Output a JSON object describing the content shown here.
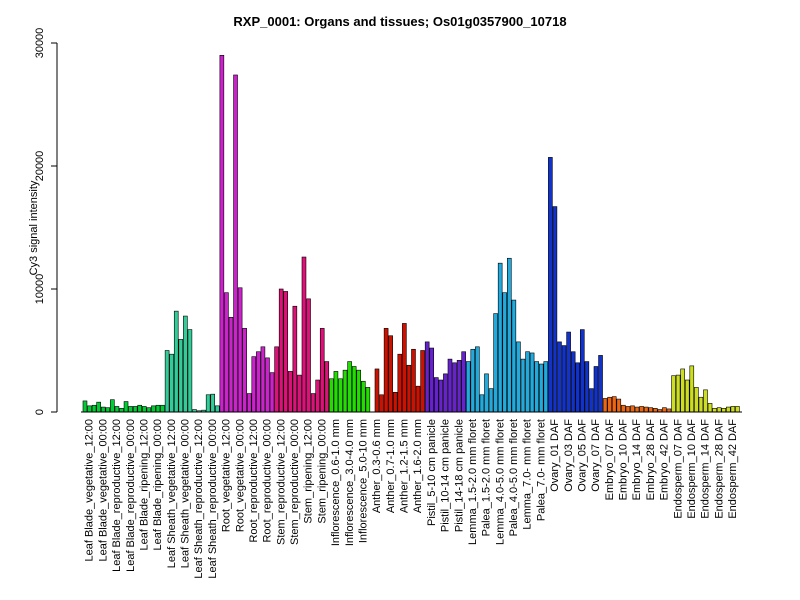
{
  "chart_data": {
    "type": "bar",
    "title": "RXP_0001: Organs and tissues; Os01g0357900_10718",
    "ylabel": "Cy3 signal intensity",
    "xlabel": "",
    "ylim": [
      0,
      30000
    ],
    "yticks": [
      0,
      10000,
      20000,
      30000
    ],
    "grid": false,
    "legend": "none",
    "series_by_group": true,
    "groups": [
      {
        "label": "Leaf Blade_vegetative_12:00",
        "color": "#00cc33",
        "values": [
          900,
          500,
          550
        ]
      },
      {
        "label": "Leaf Blade_vegetative_00:00",
        "color": "#00cc33",
        "values": [
          800,
          400,
          350
        ]
      },
      {
        "label": "Leaf Blade_reproductive_12:00",
        "color": "#00cc33",
        "values": [
          1000,
          450,
          300
        ]
      },
      {
        "label": "Leaf Blade_reproductive_00:00",
        "color": "#00cc33",
        "values": [
          850,
          450,
          450
        ]
      },
      {
        "label": "Leaf Blade_ripening_12:00",
        "color": "#00cc33",
        "values": [
          550,
          450,
          350
        ]
      },
      {
        "label": "Leaf Blade_ripening_00:00",
        "color": "#00cc33",
        "values": [
          500,
          550,
          550
        ]
      },
      {
        "label": "Leaf Sheath_vegetative_12:00",
        "color": "#33cc99",
        "values": [
          5000,
          4700,
          8200
        ]
      },
      {
        "label": "Leaf Sheath_vegetative_00:00",
        "color": "#33cc99",
        "values": [
          5900,
          7800,
          6700
        ]
      },
      {
        "label": "Leaf Sheath_reproductive_12:00",
        "color": "#33cc99",
        "values": [
          200,
          100,
          150
        ]
      },
      {
        "label": "Leaf Sheath_reproductive_00:00",
        "color": "#33cc99",
        "values": [
          1400,
          1450,
          500
        ]
      },
      {
        "label": "Root_vegetative_12:00",
        "color": "#cc22cc",
        "values": [
          29000,
          9700,
          7700
        ]
      },
      {
        "label": "Root_vegetative_00:00",
        "color": "#cc22cc",
        "values": [
          27400,
          10100,
          6800
        ]
      },
      {
        "label": "Root_reproductive_12:00",
        "color": "#cc22cc",
        "values": [
          1500,
          4500,
          4900
        ]
      },
      {
        "label": "Root_reproductive_00:00",
        "color": "#cc22cc",
        "values": [
          5300,
          4400,
          3200
        ]
      },
      {
        "label": "Stem_reproductive_12:00",
        "color": "#dd1177",
        "values": [
          5300,
          10000,
          9800
        ]
      },
      {
        "label": "Stem_reproductive_00:00",
        "color": "#dd1177",
        "values": [
          3300,
          8600,
          3000
        ]
      },
      {
        "label": "Stem_ripening_12:00",
        "color": "#dd1177",
        "values": [
          12600,
          9200,
          1500
        ]
      },
      {
        "label": "Stem_ripening_00:00",
        "color": "#dd1177",
        "values": [
          2600,
          6800,
          4100
        ]
      },
      {
        "label": "Inflorescence_0.6-1.0 mm",
        "color": "#22dd00",
        "values": [
          2700,
          3300,
          2700
        ]
      },
      {
        "label": "Inflorescence_3.0-4.0 mm",
        "color": "#22dd00",
        "values": [
          3400,
          4100,
          3700
        ]
      },
      {
        "label": "Inflorescence_5.0-10 mm",
        "color": "#22dd00",
        "values": [
          3400,
          2500,
          2000
        ]
      },
      {
        "label": "Anther_0.3-0.6 mm",
        "color": "#cc1100",
        "values": [
          0,
          3500,
          1400
        ]
      },
      {
        "label": "Anther_0.7-1.0 mm",
        "color": "#cc1100",
        "values": [
          6800,
          6200,
          1600
        ]
      },
      {
        "label": "Anther_1.2-1.5 mm",
        "color": "#cc1100",
        "values": [
          4700,
          7200,
          3800
        ]
      },
      {
        "label": "Anther_1.6-2.0 mm",
        "color": "#cc1100",
        "values": [
          5100,
          2100,
          5000
        ]
      },
      {
        "label": "Pistil_5-10 cm panicle",
        "color": "#6622cc",
        "values": [
          5700,
          5200,
          2800
        ]
      },
      {
        "label": "Pistil_10-14 cm panicle",
        "color": "#6622cc",
        "values": [
          2600,
          3100,
          4300
        ]
      },
      {
        "label": "Pistil_14-18 cm panicle",
        "color": "#6622cc",
        "values": [
          4000,
          4200,
          4900
        ]
      },
      {
        "label": "Lemma_1.5-2.0 mm floret",
        "color": "#22aadd",
        "values": [
          4100,
          5100,
          5300
        ]
      },
      {
        "label": "Palea_1.5-2.0 mm floret",
        "color": "#22aadd",
        "values": [
          1400,
          3100,
          1900
        ]
      },
      {
        "label": "Lemma_4.0-5.0 mm floret",
        "color": "#22aadd",
        "values": [
          8000,
          12100,
          9700
        ]
      },
      {
        "label": "Palea_4.0-5.0 mm floret",
        "color": "#22aadd",
        "values": [
          12500,
          9100,
          5700
        ]
      },
      {
        "label": "Lemma_7.0- mm floret",
        "color": "#22aadd",
        "values": [
          4300,
          4900,
          4800
        ]
      },
      {
        "label": "Palea_7.0- mm floret",
        "color": "#22aadd",
        "values": [
          4100,
          3900,
          4100
        ]
      },
      {
        "label": "Ovary_01 DAF",
        "color": "#1133cc",
        "values": [
          20700,
          16700,
          5700
        ]
      },
      {
        "label": "Ovary_03 DAF",
        "color": "#1133cc",
        "values": [
          5400,
          6500,
          4900
        ]
      },
      {
        "label": "Ovary_05 DAF",
        "color": "#1133cc",
        "values": [
          4000,
          6700,
          4100
        ]
      },
      {
        "label": "Ovary_07 DAF",
        "color": "#1133cc",
        "values": [
          1900,
          3700,
          4600
        ]
      },
      {
        "label": "Embryo_07 DAF",
        "color": "#ee6611",
        "values": [
          1100,
          1200,
          1250
        ]
      },
      {
        "label": "Embryo_10 DAF",
        "color": "#ee6611",
        "values": [
          1050,
          550,
          450
        ]
      },
      {
        "label": "Embryo_14 DAF",
        "color": "#ee6611",
        "values": [
          500,
          400,
          450
        ]
      },
      {
        "label": "Embryo_28 DAF",
        "color": "#ee6611",
        "values": [
          400,
          350,
          300
        ]
      },
      {
        "label": "Embryo_42 DAF",
        "color": "#ee6611",
        "values": [
          200,
          350,
          250
        ]
      },
      {
        "label": "Endosperm_07 DAF",
        "color": "#ccdd22",
        "values": [
          2950,
          3000,
          3500
        ]
      },
      {
        "label": "Endosperm_10 DAF",
        "color": "#ccdd22",
        "values": [
          2600,
          3750,
          2000
        ]
      },
      {
        "label": "Endosperm_14 DAF",
        "color": "#ccdd22",
        "values": [
          1200,
          1800,
          700
        ]
      },
      {
        "label": "Endosperm_28 DAF",
        "color": "#ccdd22",
        "values": [
          300,
          350,
          300
        ]
      },
      {
        "label": "Endosperm_42 DAF",
        "color": "#ccdd22",
        "values": [
          400,
          450,
          450
        ]
      }
    ]
  }
}
